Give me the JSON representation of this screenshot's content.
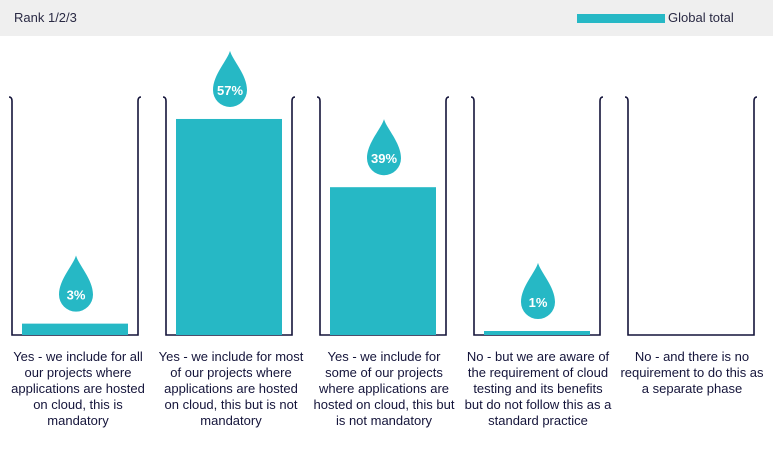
{
  "header": {
    "rank_label": "Rank 1/2/3",
    "legend_label": "Global total"
  },
  "colors": {
    "bar": "#26b8c5",
    "header_bg": "#efefef",
    "bracket": "#14143a"
  },
  "chart_data": {
    "type": "bar",
    "categories": [
      "Yes - we include for all our projects where applications are hosted on cloud, this is mandatory",
      "Yes - we include for most of our projects where applications are hosted on cloud, this but is not mandatory",
      "Yes - we include for some of our projects where applications are hosted on cloud, this but is not mandatory",
      "No - but we are aware of the requirement of cloud testing and its benefits but do not follow this as a standard practice",
      "No - and there is no requirement to do this as a separate phase"
    ],
    "series": [
      {
        "name": "Global total",
        "values": [
          3,
          57,
          39,
          1,
          0
        ]
      }
    ],
    "data_labels": [
      "3%",
      "57%",
      "39%",
      "1%",
      ""
    ],
    "ylim": [
      0,
      60
    ],
    "legend": "top-right",
    "grid": false
  }
}
